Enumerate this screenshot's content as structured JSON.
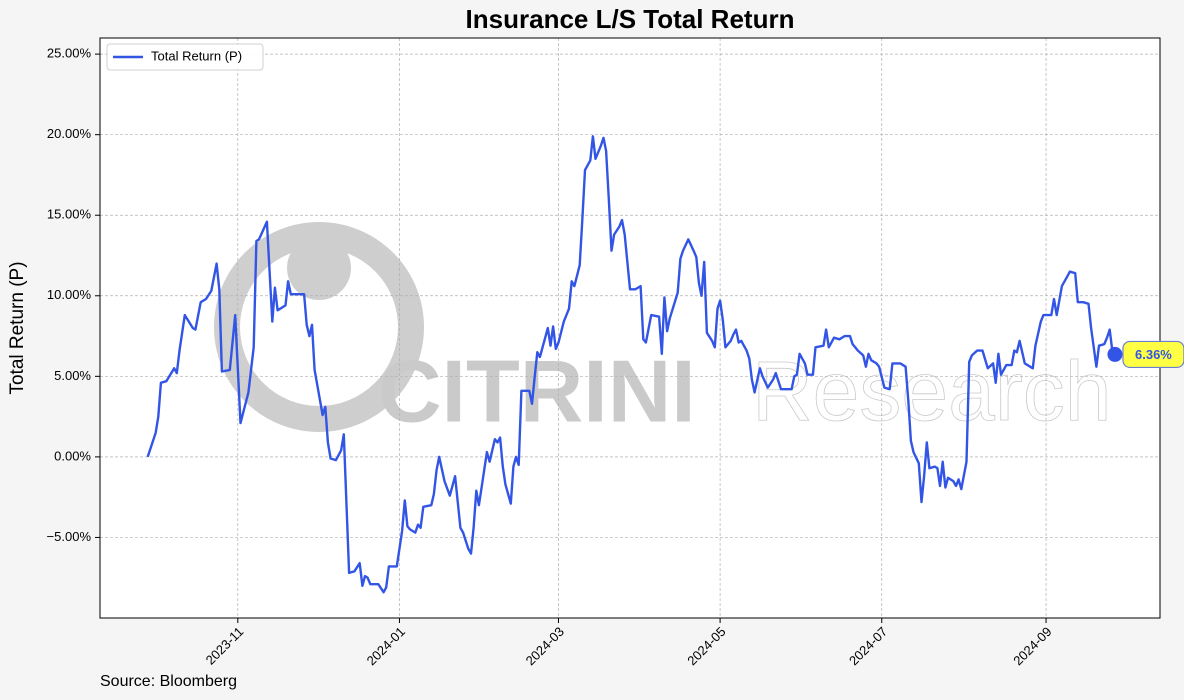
{
  "chart_data": {
    "type": "line",
    "title": "Insurance L/S Total Return",
    "y_label": "Total Return (P)",
    "source": "Source: Bloomberg",
    "watermark": "CITRINI",
    "watermark_sub": "Research",
    "legend": "upper left",
    "grid": true,
    "xlim": [
      "2023-09-10",
      "2024-10-14"
    ],
    "xticks": [
      {
        "value": "2023-11-01",
        "label": "2023-11"
      },
      {
        "value": "2024-01-01",
        "label": "2024-01"
      },
      {
        "value": "2024-03-01",
        "label": "2024-03"
      },
      {
        "value": "2024-05-01",
        "label": "2024-05"
      },
      {
        "value": "2024-07-01",
        "label": "2024-07"
      },
      {
        "value": "2024-09-01",
        "label": "2024-09"
      }
    ],
    "ylim": [
      -10,
      26
    ],
    "yticks": [
      {
        "value": -5,
        "label": "−5.00%"
      },
      {
        "value": 0,
        "label": "0.00%"
      },
      {
        "value": 5,
        "label": "5.00%"
      },
      {
        "value": 10,
        "label": "10.00%"
      },
      {
        "value": 15,
        "label": "15.00%"
      },
      {
        "value": 20,
        "label": "20.00%"
      },
      {
        "value": 25,
        "label": "25.00%"
      }
    ],
    "x": [
      "2023-09-28",
      "2023-10-01",
      "2023-10-02",
      "2023-10-03",
      "2023-10-05",
      "2023-10-08",
      "2023-10-09",
      "2023-10-10",
      "2023-10-12",
      "2023-10-15",
      "2023-10-16",
      "2023-10-18",
      "2023-10-20",
      "2023-10-22",
      "2023-10-24",
      "2023-10-25",
      "2023-10-26",
      "2023-10-29",
      "2023-10-31",
      "2023-11-02",
      "2023-11-05",
      "2023-11-07",
      "2023-11-08",
      "2023-11-09",
      "2023-11-12",
      "2023-11-14",
      "2023-11-15",
      "2023-11-16",
      "2023-11-19",
      "2023-11-20",
      "2023-11-21",
      "2023-11-26",
      "2023-11-27",
      "2023-11-28",
      "2023-11-29",
      "2023-11-30",
      "2023-12-03",
      "2023-12-04",
      "2023-12-05",
      "2023-12-06",
      "2023-12-08",
      "2023-12-10",
      "2023-12-11",
      "2023-12-13",
      "2023-12-15",
      "2023-12-17",
      "2023-12-18",
      "2023-12-19",
      "2023-12-20",
      "2023-12-21",
      "2023-12-24",
      "2023-12-26",
      "2023-12-27",
      "2023-12-28",
      "2023-12-31",
      "2024-01-02",
      "2024-01-03",
      "2024-01-04",
      "2024-01-05",
      "2024-01-07",
      "2024-01-08",
      "2024-01-09",
      "2024-01-10",
      "2024-01-13",
      "2024-01-14",
      "2024-01-15",
      "2024-01-16",
      "2024-01-18",
      "2024-01-20",
      "2024-01-22",
      "2024-01-24",
      "2024-01-25",
      "2024-01-27",
      "2024-01-28",
      "2024-01-29",
      "2024-01-30",
      "2024-01-31",
      "2024-02-01",
      "2024-02-03",
      "2024-02-04",
      "2024-02-06",
      "2024-02-07",
      "2024-02-08",
      "2024-02-09",
      "2024-02-10",
      "2024-02-12",
      "2024-02-13",
      "2024-02-14",
      "2024-02-15",
      "2024-02-16",
      "2024-02-19",
      "2024-02-20",
      "2024-02-21",
      "2024-02-22",
      "2024-02-23",
      "2024-02-25",
      "2024-02-26",
      "2024-02-27",
      "2024-02-28",
      "2024-02-29",
      "2024-03-01",
      "2024-03-03",
      "2024-03-05",
      "2024-03-06",
      "2024-03-07",
      "2024-03-09",
      "2024-03-10",
      "2024-03-11",
      "2024-03-13",
      "2024-03-14",
      "2024-03-15",
      "2024-03-17",
      "2024-03-18",
      "2024-03-19",
      "2024-03-20",
      "2024-03-21",
      "2024-03-22",
      "2024-03-24",
      "2024-03-25",
      "2024-03-26",
      "2024-03-28",
      "2024-03-30",
      "2024-04-01",
      "2024-04-02",
      "2024-04-03",
      "2024-04-05",
      "2024-04-08",
      "2024-04-09",
      "2024-04-10",
      "2024-04-11",
      "2024-04-12",
      "2024-04-15",
      "2024-04-16",
      "2024-04-17",
      "2024-04-19",
      "2024-04-21",
      "2024-04-22",
      "2024-04-23",
      "2024-04-24",
      "2024-04-25",
      "2024-04-26",
      "2024-04-28",
      "2024-04-29",
      "2024-04-30",
      "2024-05-01",
      "2024-05-02",
      "2024-05-03",
      "2024-05-05",
      "2024-05-06",
      "2024-05-07",
      "2024-05-08",
      "2024-05-09",
      "2024-05-11",
      "2024-05-12",
      "2024-05-13",
      "2024-05-14",
      "2024-05-16",
      "2024-05-17",
      "2024-05-19",
      "2024-05-21",
      "2024-05-22",
      "2024-05-24",
      "2024-05-28",
      "2024-05-29",
      "2024-05-30",
      "2024-05-31",
      "2024-06-02",
      "2024-06-03",
      "2024-06-05",
      "2024-06-06",
      "2024-06-09",
      "2024-06-10",
      "2024-06-11",
      "2024-06-13",
      "2024-06-15",
      "2024-06-17",
      "2024-06-19",
      "2024-06-20",
      "2024-06-22",
      "2024-06-24",
      "2024-06-25",
      "2024-06-26",
      "2024-06-27",
      "2024-06-29",
      "2024-06-30",
      "2024-07-02",
      "2024-07-04",
      "2024-07-05",
      "2024-07-08",
      "2024-07-10",
      "2024-07-11",
      "2024-07-12",
      "2024-07-13",
      "2024-07-15",
      "2024-07-16",
      "2024-07-17",
      "2024-07-18",
      "2024-07-19",
      "2024-07-21",
      "2024-07-22",
      "2024-07-23",
      "2024-07-24",
      "2024-07-25",
      "2024-07-26",
      "2024-07-28",
      "2024-07-29",
      "2024-07-30",
      "2024-07-31",
      "2024-08-02",
      "2024-08-03",
      "2024-08-04",
      "2024-08-06",
      "2024-08-08",
      "2024-08-10",
      "2024-08-12",
      "2024-08-13",
      "2024-08-14",
      "2024-08-15",
      "2024-08-17",
      "2024-08-19",
      "2024-08-20",
      "2024-08-21",
      "2024-08-22",
      "2024-08-24",
      "2024-08-27",
      "2024-08-28",
      "2024-08-30",
      "2024-08-31",
      "2024-09-03",
      "2024-09-04",
      "2024-09-05",
      "2024-09-07",
      "2024-09-09",
      "2024-09-10",
      "2024-09-12",
      "2024-09-13",
      "2024-09-15",
      "2024-09-17",
      "2024-09-18",
      "2024-09-20",
      "2024-09-21",
      "2024-09-23",
      "2024-09-24",
      "2024-09-25",
      "2024-09-26",
      "2024-09-27"
    ],
    "series": [
      {
        "name": "Total Return (P)",
        "color": "#3355e6",
        "end_label": "6.36%",
        "label_color": "#ffff44",
        "values": [
          0.0,
          1.5,
          2.5,
          4.6,
          4.7,
          5.5,
          5.2,
          6.6,
          8.8,
          8.0,
          7.9,
          9.6,
          9.8,
          10.3,
          12.0,
          10.4,
          5.3,
          5.4,
          8.8,
          2.1,
          4.0,
          6.8,
          13.4,
          13.5,
          14.6,
          8.4,
          10.5,
          9.1,
          9.4,
          10.9,
          10.1,
          10.1,
          8.2,
          7.5,
          8.2,
          5.4,
          2.6,
          3.1,
          0.9,
          -0.1,
          -0.2,
          0.4,
          1.4,
          -7.2,
          -7.1,
          -6.6,
          -8.0,
          -7.4,
          -7.5,
          -7.9,
          -7.9,
          -8.4,
          -8.1,
          -6.8,
          -6.8,
          -4.6,
          -2.7,
          -4.3,
          -4.5,
          -4.7,
          -4.2,
          -4.4,
          -3.1,
          -3.0,
          -2.3,
          -0.8,
          0.0,
          -1.5,
          -2.4,
          -1.2,
          -4.4,
          -4.7,
          -5.7,
          -6.0,
          -4.4,
          -2.1,
          -3.0,
          -1.9,
          0.3,
          -0.3,
          1.1,
          0.9,
          1.2,
          -0.6,
          -1.7,
          -2.9,
          -0.6,
          0.0,
          -0.5,
          4.1,
          4.1,
          3.3,
          4.9,
          6.5,
          6.2,
          7.4,
          8.0,
          6.9,
          8.1,
          6.7,
          7.1,
          8.4,
          9.2,
          10.9,
          10.6,
          11.9,
          14.7,
          17.8,
          18.4,
          19.9,
          18.5,
          19.3,
          19.8,
          19.0,
          16.0,
          12.8,
          13.8,
          14.3,
          14.7,
          13.8,
          10.4,
          10.4,
          10.6,
          7.3,
          7.1,
          8.8,
          8.7,
          6.4,
          9.9,
          7.8,
          8.6,
          10.2,
          12.3,
          12.8,
          13.5,
          12.8,
          12.4,
          10.8,
          10.0,
          12.1,
          7.7,
          7.2,
          6.8,
          9.2,
          9.7,
          8.5,
          6.8,
          7.2,
          7.6,
          7.9,
          7.1,
          7.2,
          6.6,
          6.1,
          4.8,
          4.0,
          5.5,
          5.0,
          4.3,
          4.8,
          5.2,
          4.2,
          4.2,
          5.0,
          5.1,
          6.4,
          5.8,
          5.1,
          5.1,
          6.8,
          6.9,
          7.9,
          6.8,
          7.4,
          7.3,
          7.5,
          7.5,
          7.0,
          6.6,
          6.3,
          5.6,
          6.4,
          6.0,
          5.8,
          5.6,
          4.3,
          4.2,
          5.8,
          5.8,
          5.6,
          3.5,
          1.0,
          0.3,
          -0.4,
          -2.8,
          -1.2,
          0.9,
          -0.7,
          -0.6,
          -0.7,
          -1.8,
          -0.3,
          -1.9,
          -1.3,
          -1.5,
          -1.8,
          -1.4,
          -2.0,
          -0.3,
          5.9,
          6.3,
          6.6,
          6.6,
          5.5,
          5.8,
          4.6,
          6.4,
          5.1,
          5.7,
          5.7,
          6.6,
          6.5,
          7.2,
          5.8,
          5.5,
          6.9,
          8.4,
          8.8,
          8.8,
          9.8,
          8.8,
          10.6,
          11.2,
          11.5,
          11.4,
          9.6,
          9.6,
          9.5,
          8.0,
          5.6,
          6.9,
          7.0,
          7.4,
          7.9,
          6.6,
          6.36
        ]
      }
    ]
  }
}
